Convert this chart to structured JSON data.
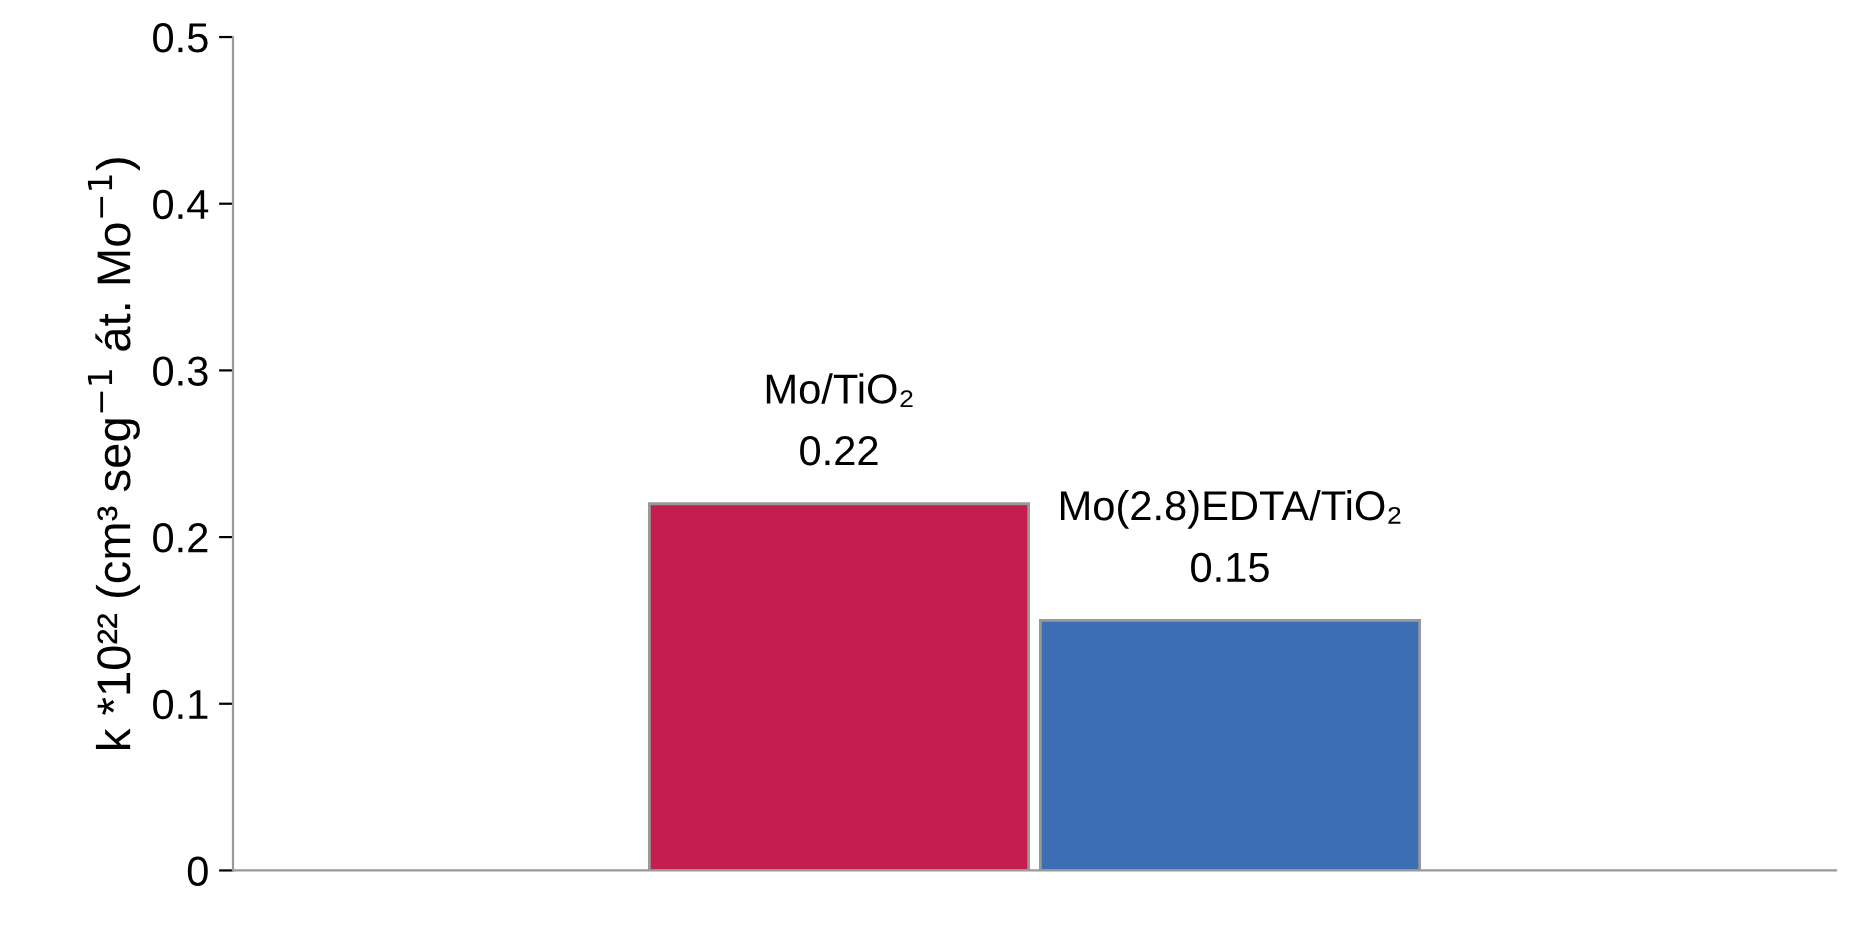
{
  "chart_data": {
    "type": "bar",
    "ylabel": "k *10²² (cm³ seg$^{−1}$ át. Mo$^{−1}$)",
    "categories": [
      "Mo/TiO₂",
      "Mo(2.8)EDTA/TiO₂"
    ],
    "values": [
      0.22,
      0.15
    ],
    "colors": [
      "#c41e50",
      "#3c6eb4"
    ],
    "ylim": [
      0,
      0.5
    ],
    "yticks": [
      0,
      0.1,
      0.2,
      0.3,
      0.4,
      0.5
    ],
    "data_labels": true,
    "grid": false,
    "legend": false,
    "tick_labels": "y"
  }
}
